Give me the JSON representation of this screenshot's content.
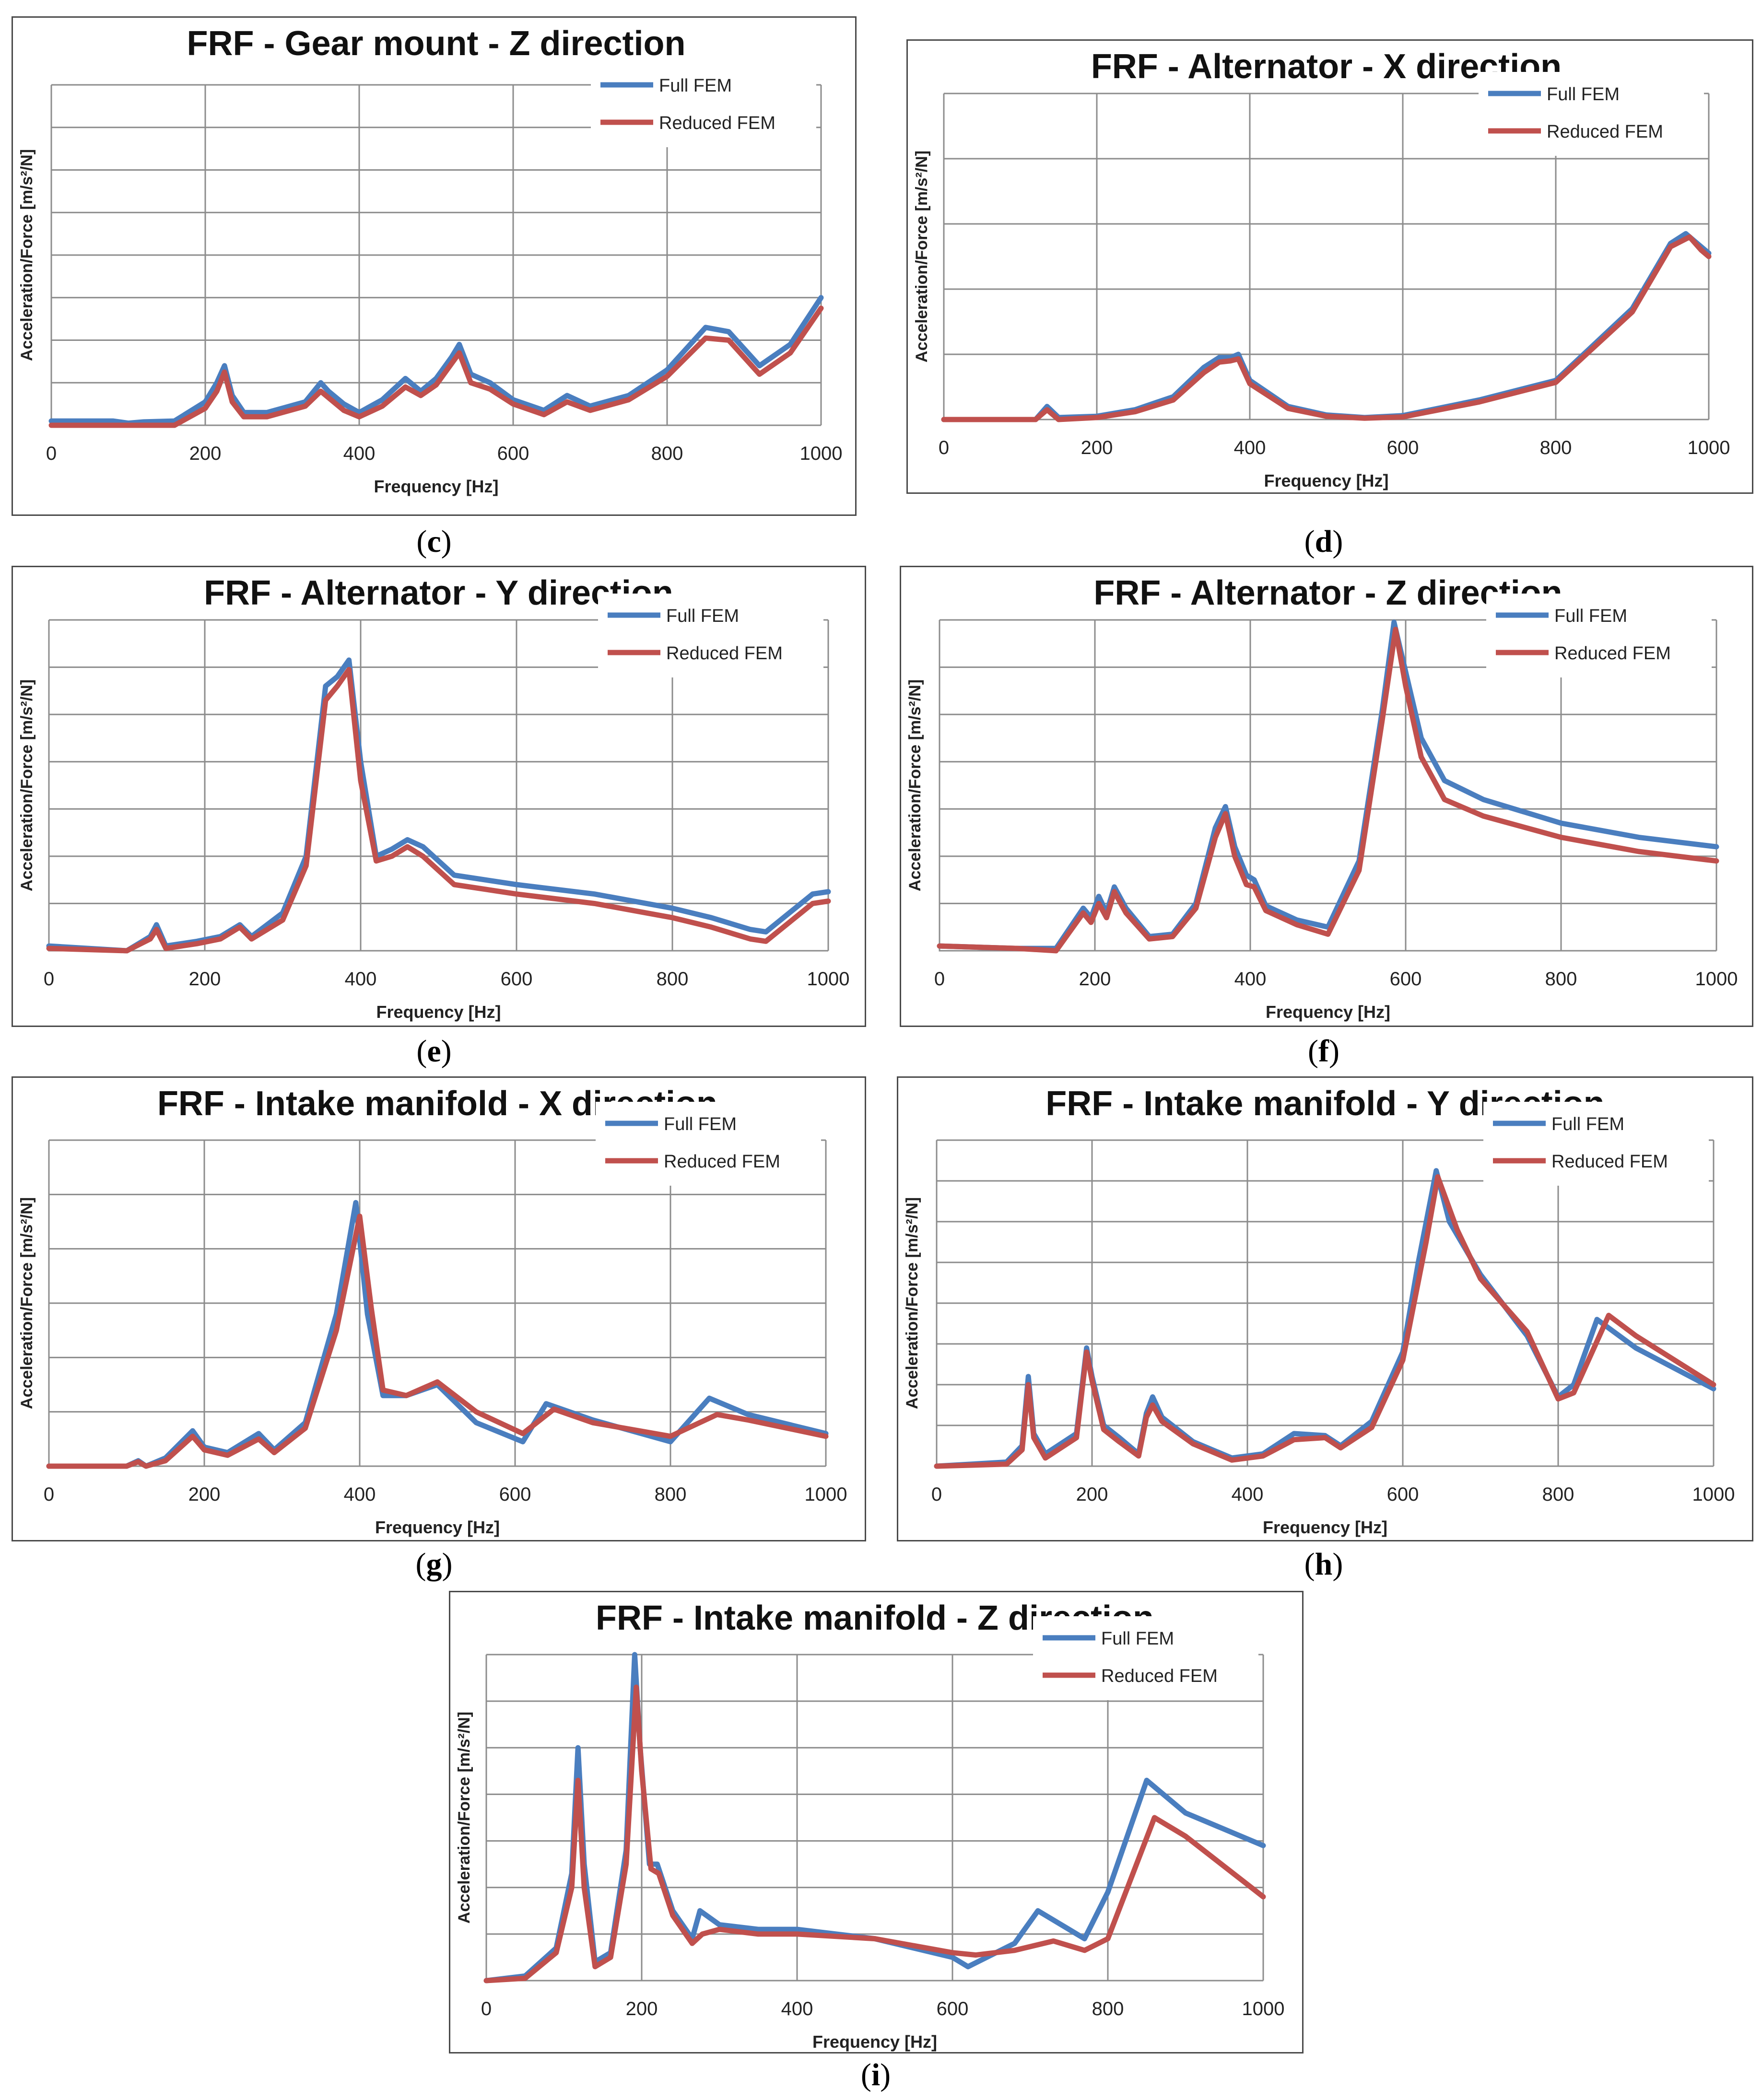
{
  "colors": {
    "full": "#4a7ebf",
    "reduced": "#c0504d",
    "grid": "#8c8c8c"
  },
  "chart_data": [
    {
      "id": "c",
      "caption": "c",
      "type": "line",
      "title": "FRF - Gear mount - Z direction",
      "xlabel": "Frequency [Hz]",
      "ylabel": "Acceleration/Force [m/s²/N]",
      "xlim": [
        0,
        1000
      ],
      "ylim": [
        0,
        8
      ],
      "xticks": [
        0,
        200,
        400,
        600,
        800,
        1000
      ],
      "yticks_labeled": false,
      "legend_position": "top-right",
      "series": [
        {
          "name": "Full FEM",
          "x": [
            0,
            80,
            100,
            120,
            160,
            200,
            215,
            225,
            235,
            250,
            280,
            300,
            330,
            350,
            360,
            380,
            400,
            430,
            460,
            480,
            500,
            520,
            530,
            545,
            570,
            600,
            640,
            670,
            700,
            750,
            800,
            850,
            880,
            920,
            960,
            1000
          ],
          "y": [
            0.1,
            0.1,
            0.05,
            0.08,
            0.1,
            0.55,
            1.0,
            1.4,
            0.7,
            0.3,
            0.3,
            0.4,
            0.55,
            1.0,
            0.8,
            0.5,
            0.3,
            0.6,
            1.1,
            0.8,
            1.1,
            1.6,
            1.9,
            1.2,
            1.0,
            0.6,
            0.35,
            0.7,
            0.45,
            0.7,
            1.3,
            2.3,
            2.2,
            1.4,
            1.9,
            3.0
          ]
        },
        {
          "name": "Reduced FEM",
          "x": [
            0,
            120,
            160,
            200,
            215,
            225,
            235,
            250,
            280,
            300,
            330,
            350,
            360,
            380,
            400,
            430,
            460,
            480,
            500,
            520,
            530,
            545,
            570,
            600,
            640,
            670,
            700,
            750,
            800,
            850,
            880,
            920,
            960,
            1000
          ],
          "y": [
            0.0,
            0.0,
            0.0,
            0.4,
            0.8,
            1.25,
            0.55,
            0.2,
            0.2,
            0.3,
            0.45,
            0.8,
            0.65,
            0.35,
            0.2,
            0.45,
            0.9,
            0.7,
            0.95,
            1.45,
            1.7,
            1.0,
            0.85,
            0.5,
            0.25,
            0.55,
            0.35,
            0.6,
            1.15,
            2.05,
            2.0,
            1.2,
            1.7,
            2.75
          ]
        }
      ]
    },
    {
      "id": "d",
      "caption": "d",
      "type": "line",
      "title": "FRF - Alternator - X direction",
      "xlabel": "Frequency [Hz]",
      "ylabel": "Acceleration/Force [m/s²/N]",
      "xlim": [
        0,
        1000
      ],
      "ylim": [
        0,
        5
      ],
      "xticks": [
        0,
        200,
        400,
        600,
        800,
        1000
      ],
      "yticks_labeled": false,
      "legend_position": "top-right",
      "series": [
        {
          "name": "Full FEM",
          "x": [
            0,
            120,
            135,
            150,
            200,
            250,
            300,
            340,
            360,
            375,
            385,
            400,
            450,
            500,
            550,
            600,
            700,
            800,
            900,
            950,
            970,
            990,
            1000
          ],
          "y": [
            0.0,
            0.0,
            0.2,
            0.03,
            0.05,
            0.15,
            0.35,
            0.8,
            0.95,
            0.95,
            1.0,
            0.6,
            0.2,
            0.07,
            0.03,
            0.06,
            0.3,
            0.6,
            1.7,
            2.7,
            2.85,
            2.65,
            2.55
          ]
        },
        {
          "name": "Reduced FEM",
          "x": [
            0,
            120,
            135,
            150,
            200,
            250,
            300,
            340,
            360,
            375,
            385,
            400,
            450,
            500,
            550,
            600,
            700,
            800,
            900,
            950,
            975,
            990,
            1000
          ],
          "y": [
            0.0,
            0.0,
            0.15,
            0.0,
            0.03,
            0.12,
            0.3,
            0.72,
            0.88,
            0.9,
            0.93,
            0.55,
            0.17,
            0.05,
            0.02,
            0.04,
            0.27,
            0.57,
            1.65,
            2.65,
            2.8,
            2.6,
            2.5
          ]
        }
      ]
    },
    {
      "id": "e",
      "caption": "e",
      "type": "line",
      "title": "FRF - Alternator - Y direction",
      "xlabel": "Frequency [Hz]",
      "ylabel": "Acceleration/Force [m/s²/N]",
      "xlim": [
        0,
        1000
      ],
      "ylim": [
        0,
        7
      ],
      "xticks": [
        0,
        200,
        400,
        600,
        800,
        1000
      ],
      "yticks_labeled": false,
      "legend_position": "top-right",
      "series": [
        {
          "name": "Full FEM",
          "x": [
            0,
            100,
            130,
            138,
            150,
            190,
            220,
            245,
            260,
            300,
            330,
            355,
            370,
            385,
            400,
            420,
            440,
            460,
            480,
            520,
            600,
            700,
            800,
            850,
            900,
            920,
            980,
            1000
          ],
          "y": [
            0.1,
            0.0,
            0.3,
            0.55,
            0.1,
            0.2,
            0.3,
            0.55,
            0.3,
            0.8,
            2.0,
            5.6,
            5.8,
            6.15,
            4.0,
            2.0,
            2.15,
            2.35,
            2.2,
            1.6,
            1.4,
            1.2,
            0.9,
            0.7,
            0.45,
            0.4,
            1.2,
            1.25
          ]
        },
        {
          "name": "Reduced FEM",
          "x": [
            0,
            100,
            130,
            138,
            150,
            190,
            220,
            245,
            260,
            300,
            330,
            355,
            370,
            385,
            400,
            420,
            440,
            460,
            480,
            520,
            600,
            700,
            800,
            850,
            900,
            920,
            980,
            1000
          ],
          "y": [
            0.05,
            0.0,
            0.25,
            0.45,
            0.05,
            0.15,
            0.25,
            0.5,
            0.25,
            0.65,
            1.8,
            5.3,
            5.6,
            5.95,
            3.6,
            1.9,
            2.0,
            2.2,
            2.0,
            1.4,
            1.2,
            1.0,
            0.7,
            0.5,
            0.25,
            0.2,
            1.0,
            1.05
          ]
        }
      ]
    },
    {
      "id": "f",
      "caption": "f",
      "type": "line",
      "title": "FRF - Alternator - Z direction",
      "xlabel": "Frequency [Hz]",
      "ylabel": "Acceleration/Force [m/s²/N]",
      "xlim": [
        0,
        1000
      ],
      "ylim": [
        0,
        7
      ],
      "xticks": [
        0,
        200,
        400,
        600,
        800,
        1000
      ],
      "yticks_labeled": false,
      "legend_position": "top-right",
      "series": [
        {
          "name": "Full FEM",
          "x": [
            0,
            100,
            150,
            185,
            195,
            205,
            215,
            225,
            240,
            270,
            300,
            330,
            355,
            368,
            380,
            395,
            405,
            420,
            440,
            460,
            500,
            540,
            570,
            585,
            600,
            620,
            650,
            700,
            800,
            900,
            1000
          ],
          "y": [
            0.1,
            0.05,
            0.05,
            0.9,
            0.7,
            1.15,
            0.8,
            1.35,
            0.9,
            0.3,
            0.35,
            1.0,
            2.6,
            3.05,
            2.2,
            1.6,
            1.5,
            0.95,
            0.8,
            0.65,
            0.5,
            1.9,
            5.1,
            6.95,
            5.9,
            4.5,
            3.6,
            3.2,
            2.7,
            2.4,
            2.2
          ]
        },
        {
          "name": "Reduced FEM",
          "x": [
            0,
            100,
            150,
            185,
            195,
            205,
            215,
            225,
            240,
            270,
            300,
            330,
            355,
            368,
            380,
            395,
            405,
            420,
            440,
            460,
            500,
            540,
            570,
            587,
            600,
            620,
            650,
            700,
            800,
            900,
            1000
          ],
          "y": [
            0.1,
            0.05,
            0.0,
            0.8,
            0.6,
            1.0,
            0.7,
            1.25,
            0.8,
            0.25,
            0.3,
            0.9,
            2.4,
            2.9,
            2.0,
            1.4,
            1.35,
            0.85,
            0.7,
            0.55,
            0.35,
            1.7,
            4.9,
            6.8,
            5.6,
            4.1,
            3.2,
            2.85,
            2.4,
            2.1,
            1.9
          ]
        }
      ]
    },
    {
      "id": "g",
      "caption": "g",
      "type": "line",
      "title": "FRF - Intake manifold - X direction",
      "xlabel": "Frequency [Hz]",
      "ylabel": "Acceleration/Force [m/s²/N]",
      "xlim": [
        0,
        1000
      ],
      "ylim": [
        0,
        6
      ],
      "xticks": [
        0,
        200,
        400,
        600,
        800,
        1000
      ],
      "yticks_labeled": false,
      "legend_position": "top-right",
      "series": [
        {
          "name": "Full FEM",
          "x": [
            0,
            100,
            115,
            125,
            150,
            185,
            200,
            230,
            270,
            290,
            330,
            370,
            395,
            410,
            430,
            460,
            500,
            550,
            610,
            640,
            700,
            800,
            850,
            900,
            1000
          ],
          "y": [
            0.0,
            0.0,
            0.1,
            0.0,
            0.15,
            0.65,
            0.35,
            0.25,
            0.6,
            0.3,
            0.8,
            2.8,
            4.85,
            2.8,
            1.3,
            1.3,
            1.5,
            0.8,
            0.45,
            1.15,
            0.85,
            0.45,
            1.25,
            0.95,
            0.6
          ]
        },
        {
          "name": "Reduced FEM",
          "x": [
            0,
            100,
            115,
            125,
            150,
            185,
            200,
            230,
            270,
            290,
            330,
            370,
            400,
            415,
            430,
            460,
            500,
            550,
            610,
            650,
            700,
            800,
            860,
            900,
            1000
          ],
          "y": [
            0.0,
            0.0,
            0.08,
            0.0,
            0.1,
            0.55,
            0.3,
            0.2,
            0.5,
            0.25,
            0.7,
            2.5,
            4.6,
            2.9,
            1.4,
            1.3,
            1.55,
            1.0,
            0.6,
            1.05,
            0.8,
            0.55,
            0.95,
            0.85,
            0.55
          ]
        }
      ]
    },
    {
      "id": "h",
      "caption": "h",
      "type": "line",
      "title": "FRF - Intake manifold - Y direction",
      "xlabel": "Frequency [Hz]",
      "ylabel": "Acceleration/Force [m/s²/N]",
      "xlim": [
        0,
        1000
      ],
      "ylim": [
        0,
        8
      ],
      "xticks": [
        0,
        200,
        400,
        600,
        800,
        1000
      ],
      "yticks_labeled": false,
      "legend_position": "top-right",
      "series": [
        {
          "name": "Full FEM",
          "x": [
            0,
            90,
            110,
            118,
            125,
            140,
            180,
            193,
            200,
            215,
            235,
            260,
            270,
            278,
            290,
            330,
            380,
            420,
            460,
            500,
            520,
            560,
            600,
            620,
            643,
            660,
            700,
            760,
            800,
            820,
            850,
            900,
            1000
          ],
          "y": [
            0.0,
            0.1,
            0.5,
            2.2,
            0.8,
            0.3,
            0.8,
            2.9,
            2.2,
            1.0,
            0.7,
            0.3,
            1.3,
            1.7,
            1.2,
            0.6,
            0.2,
            0.3,
            0.8,
            0.75,
            0.5,
            1.1,
            2.8,
            5.0,
            7.25,
            6.0,
            4.7,
            3.2,
            1.7,
            2.0,
            3.6,
            2.9,
            1.9
          ]
        },
        {
          "name": "Reduced FEM",
          "x": [
            0,
            90,
            110,
            118,
            125,
            140,
            180,
            193,
            200,
            215,
            235,
            260,
            270,
            278,
            290,
            330,
            380,
            420,
            460,
            500,
            520,
            560,
            600,
            630,
            645,
            670,
            700,
            760,
            800,
            820,
            865,
            900,
            1000
          ],
          "y": [
            0.0,
            0.05,
            0.4,
            2.0,
            0.7,
            0.2,
            0.7,
            2.8,
            2.1,
            0.9,
            0.6,
            0.25,
            1.2,
            1.5,
            1.1,
            0.55,
            0.15,
            0.25,
            0.65,
            0.7,
            0.45,
            0.95,
            2.6,
            5.5,
            7.1,
            5.8,
            4.6,
            3.3,
            1.65,
            1.8,
            3.7,
            3.2,
            2.0
          ]
        }
      ]
    },
    {
      "id": "i",
      "caption": "i",
      "type": "line",
      "title": "FRF - Intake manifold - Z direction",
      "xlabel": "Frequency [Hz]",
      "ylabel": "Acceleration/Force [m/s²/N]",
      "xlim": [
        0,
        1000
      ],
      "ylim": [
        0,
        7
      ],
      "xticks": [
        0,
        200,
        400,
        600,
        800,
        1000
      ],
      "yticks_labeled": false,
      "legend_position": "top-right",
      "series": [
        {
          "name": "Full FEM",
          "x": [
            0,
            50,
            90,
            110,
            118,
            126,
            140,
            160,
            180,
            191,
            198,
            210,
            220,
            240,
            265,
            275,
            300,
            350,
            400,
            500,
            600,
            620,
            680,
            710,
            750,
            770,
            800,
            850,
            900,
            1000
          ],
          "y": [
            0.0,
            0.1,
            0.7,
            2.3,
            5.0,
            2.5,
            0.4,
            0.6,
            2.8,
            7.0,
            5.0,
            2.5,
            2.5,
            1.5,
            0.9,
            1.5,
            1.2,
            1.1,
            1.1,
            0.9,
            0.5,
            0.3,
            0.8,
            1.5,
            1.1,
            0.9,
            1.9,
            4.3,
            3.6,
            2.9
          ]
        },
        {
          "name": "Reduced FEM",
          "x": [
            0,
            50,
            90,
            110,
            118,
            126,
            140,
            160,
            180,
            193,
            200,
            212,
            222,
            240,
            265,
            278,
            300,
            350,
            400,
            500,
            600,
            630,
            680,
            730,
            770,
            800,
            860,
            900,
            1000
          ],
          "y": [
            0.0,
            0.05,
            0.6,
            2.0,
            4.3,
            2.0,
            0.3,
            0.5,
            2.5,
            6.3,
            4.5,
            2.4,
            2.3,
            1.4,
            0.8,
            1.0,
            1.1,
            1.0,
            1.0,
            0.9,
            0.6,
            0.55,
            0.65,
            0.85,
            0.65,
            0.9,
            3.5,
            3.1,
            1.8
          ]
        }
      ]
    }
  ]
}
